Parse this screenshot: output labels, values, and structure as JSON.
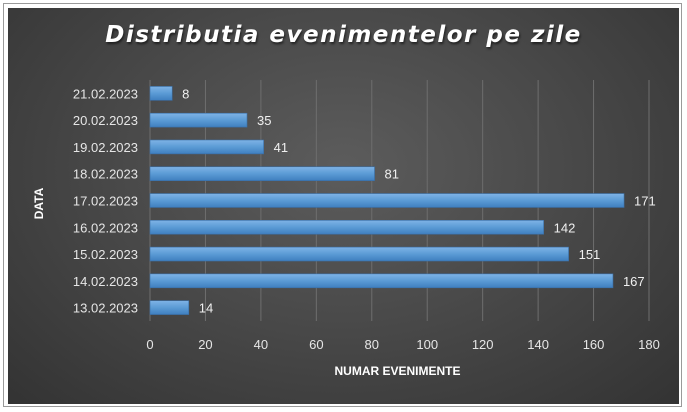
{
  "chart_data": {
    "type": "bar",
    "orientation": "horizontal",
    "title": "Distributia evenimentelor  pe zile",
    "xlabel": "NUMAR EVENIMENTE",
    "ylabel": "DATA",
    "categories": [
      "13.02.2023",
      "14.02.2023",
      "15.02.2023",
      "16.02.2023",
      "17.02.2023",
      "18.02.2023",
      "19.02.2023",
      "20.02.2023",
      "21.02.2023"
    ],
    "values": [
      14,
      167,
      151,
      142,
      171,
      81,
      41,
      35,
      8
    ],
    "xlim": [
      0,
      180
    ],
    "xticks": [
      0,
      20,
      40,
      60,
      80,
      100,
      120,
      140,
      160,
      180
    ],
    "grid": true,
    "legend": "none",
    "bar_color": "#5b9bd5",
    "background_color": "#4a4a4a"
  }
}
